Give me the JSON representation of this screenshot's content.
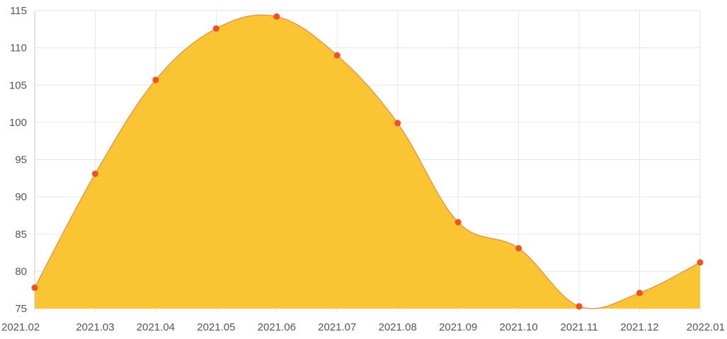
{
  "chart_data": {
    "type": "area",
    "categories": [
      "2021.02",
      "2021.03",
      "2021.04",
      "2021.05",
      "2021.06",
      "2021.07",
      "2021.08",
      "2021.09",
      "2021.10",
      "2021.11",
      "2021.12",
      "2022.01"
    ],
    "series": [
      {
        "values": [
          77.8,
          93.1,
          105.7,
          112.6,
          114.2,
          109.0,
          99.9,
          86.6,
          83.1,
          75.3,
          77.1,
          81.2
        ]
      }
    ],
    "y_ticks": [
      "75",
      "80",
      "85",
      "90",
      "95",
      "100",
      "105",
      "110",
      "115"
    ],
    "ylim": [
      75,
      115
    ],
    "grid": true,
    "smooth": true,
    "colors": {
      "fill": "#f9c532",
      "line": "#f0883a",
      "point": "#f4511e",
      "grid": "#e6e6e6",
      "axis": "#c8c8c8"
    }
  }
}
